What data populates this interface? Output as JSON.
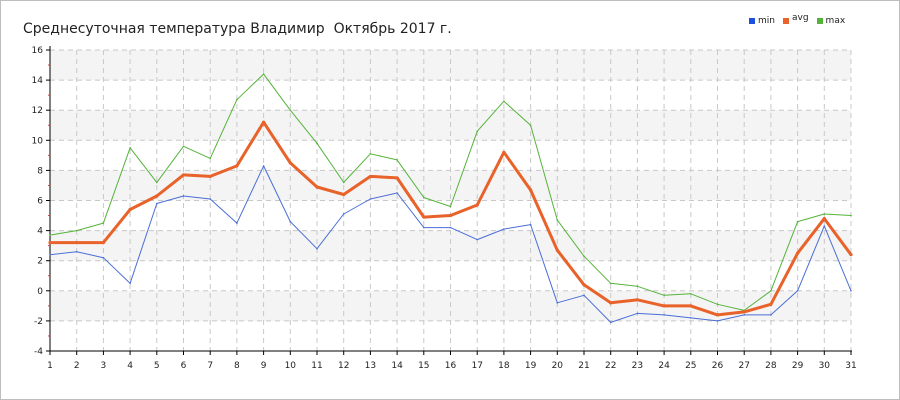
{
  "title": "Среднесуточная температура Владимир  Октябрь 2017 г.",
  "legend": [
    {
      "label": "min",
      "color": "#1f4fe0"
    },
    {
      "label": "avg",
      "color": "#e8622a"
    },
    {
      "label": "max",
      "color": "#55b33a"
    }
  ],
  "colors": {
    "grid": "#c8c8c8",
    "band": "#f4f4f4",
    "axis": "#000000",
    "min_line": "#4a6ed6",
    "avg_line": "#e8622a",
    "max_line": "#55b33a"
  },
  "chart_data": {
    "type": "line",
    "x": [
      1,
      2,
      3,
      4,
      5,
      6,
      7,
      8,
      9,
      10,
      11,
      12,
      13,
      14,
      15,
      16,
      17,
      18,
      19,
      20,
      21,
      22,
      23,
      24,
      25,
      26,
      27,
      28,
      29,
      30,
      31
    ],
    "x_ticks": [
      "1",
      "2",
      "3",
      "4",
      "5",
      "6",
      "7",
      "8",
      "9",
      "10",
      "11",
      "12",
      "13",
      "14",
      "15",
      "16",
      "17",
      "18",
      "19",
      "20",
      "21",
      "22",
      "23",
      "24",
      "25",
      "26",
      "27",
      "28",
      "29",
      "30",
      "31"
    ],
    "y_ticks": [
      "16",
      "14",
      "12",
      "10",
      "8",
      "6",
      "4",
      "2",
      "0",
      "-2",
      "-4"
    ],
    "xlim": [
      1,
      31
    ],
    "ylim": [
      -4,
      16
    ],
    "grid": true,
    "legend_position": "top-right",
    "series": [
      {
        "name": "min",
        "values": [
          2.4,
          2.6,
          2.2,
          0.5,
          5.8,
          6.3,
          6.1,
          4.5,
          8.3,
          4.6,
          2.8,
          5.1,
          6.1,
          6.5,
          4.2,
          4.2,
          3.4,
          4.1,
          4.4,
          -0.8,
          -0.3,
          -2.1,
          -1.5,
          -1.6,
          -1.8,
          -2.0,
          -1.6,
          -1.6,
          0.0,
          4.3,
          0.0
        ]
      },
      {
        "name": "avg",
        "values": [
          3.2,
          3.2,
          3.2,
          5.4,
          6.3,
          7.7,
          7.6,
          8.3,
          11.2,
          8.5,
          6.9,
          6.4,
          7.6,
          7.5,
          4.9,
          5.0,
          5.7,
          9.2,
          6.7,
          2.7,
          0.4,
          -0.8,
          -0.6,
          -1.0,
          -1.0,
          -1.6,
          -1.4,
          -0.9,
          2.5,
          4.8,
          2.4
        ]
      },
      {
        "name": "max",
        "values": [
          3.7,
          4.0,
          4.5,
          9.5,
          7.2,
          9.6,
          8.8,
          12.7,
          14.4,
          12.0,
          9.8,
          7.2,
          9.1,
          8.7,
          6.2,
          5.6,
          10.6,
          12.6,
          11.0,
          4.7,
          2.3,
          0.5,
          0.3,
          -0.3,
          -0.2,
          -0.9,
          -1.3,
          0.0,
          4.6,
          5.1,
          5.0
        ]
      }
    ]
  }
}
